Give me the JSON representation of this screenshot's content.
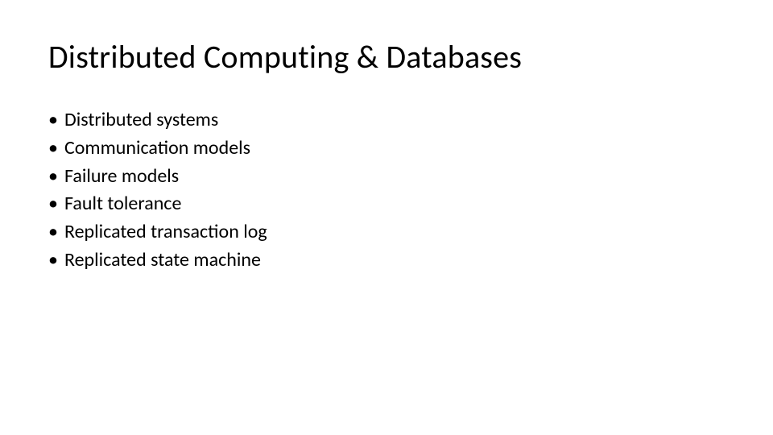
{
  "slide": {
    "title": "Distributed Computing & Databases",
    "title_fontsize": 40,
    "title_color": "#000000",
    "body_fontsize": 24,
    "body_color": "#000000",
    "background_color": "#ffffff",
    "bullet_glyph": "•",
    "bullets": [
      "Distributed systems",
      "Communication models",
      "Failure models",
      "Fault tolerance",
      "Replicated transaction log",
      "Replicated state machine"
    ]
  }
}
